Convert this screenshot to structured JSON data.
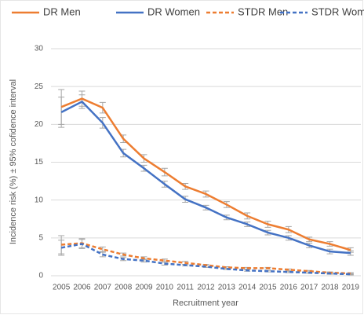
{
  "chart_data": {
    "type": "line",
    "y_label": "Incidence risk (%) ± 95% cofidence interval",
    "x_label": "Recruitment year",
    "categories": [
      "2005",
      "2006",
      "2007",
      "2008",
      "2009",
      "2010",
      "2011",
      "2012",
      "2013",
      "2014",
      "2015",
      "2016",
      "2017",
      "2018",
      "2019"
    ],
    "ylim": [
      0,
      30
    ],
    "yticks": [
      0,
      5,
      10,
      15,
      20,
      25,
      30
    ],
    "grid": true,
    "legend": "top",
    "error_color": "#a6a6a6",
    "series": [
      {
        "name": "DR Men",
        "color": "#ed7d31",
        "dash": false,
        "values": [
          22.3,
          23.4,
          22.2,
          18.1,
          15.5,
          13.7,
          11.8,
          10.8,
          9.4,
          7.9,
          6.8,
          6.1,
          4.8,
          4.2,
          3.4
        ],
        "errors": [
          2.3,
          1.0,
          0.7,
          0.5,
          0.5,
          0.5,
          0.4,
          0.4,
          0.4,
          0.4,
          0.4,
          0.4,
          0.3,
          0.3,
          0.3
        ]
      },
      {
        "name": "DR Women",
        "color": "#4472c4",
        "dash": false,
        "values": [
          21.6,
          23.0,
          20.2,
          16.2,
          14.2,
          12.1,
          10.1,
          9.0,
          7.7,
          6.8,
          5.7,
          5.0,
          4.0,
          3.2,
          3.0
        ],
        "errors": [
          2.0,
          0.9,
          0.7,
          0.5,
          0.4,
          0.4,
          0.4,
          0.3,
          0.3,
          0.3,
          0.3,
          0.3,
          0.3,
          0.3,
          0.3
        ]
      },
      {
        "name": "STDR Men",
        "color": "#ed7d31",
        "dash": true,
        "values": [
          4.1,
          4.3,
          3.5,
          2.8,
          2.3,
          2.0,
          1.7,
          1.4,
          1.1,
          1.0,
          1.0,
          0.8,
          0.6,
          0.4,
          0.3
        ],
        "errors": [
          1.2,
          0.6,
          0.3,
          0.2,
          0.2,
          0.2,
          0.2,
          0.1,
          0.1,
          0.1,
          0.1,
          0.1,
          0.1,
          0.1,
          0.1
        ]
      },
      {
        "name": "STDR Women",
        "color": "#4472c4",
        "dash": true,
        "values": [
          3.7,
          4.2,
          2.8,
          2.2,
          2.0,
          1.6,
          1.4,
          1.2,
          0.9,
          0.7,
          0.6,
          0.5,
          0.4,
          0.3,
          0.2
        ],
        "errors": [
          1.0,
          0.6,
          0.3,
          0.2,
          0.2,
          0.2,
          0.1,
          0.1,
          0.1,
          0.1,
          0.1,
          0.1,
          0.1,
          0.1,
          0.1
        ]
      }
    ]
  }
}
